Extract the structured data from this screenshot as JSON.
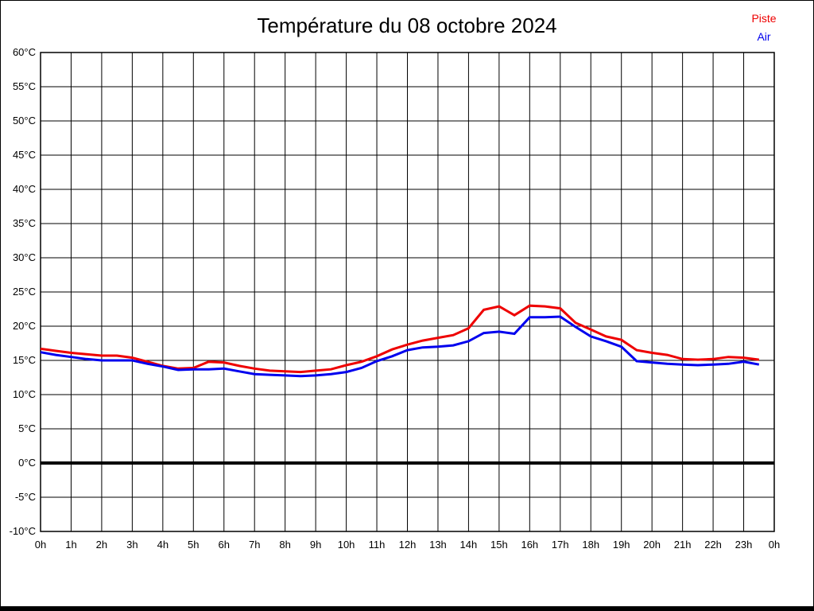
{
  "header": {
    "title": "Température du 08 octobre 2024"
  },
  "legend": {
    "items": [
      {
        "label": "Piste",
        "color": "#ee0000"
      },
      {
        "label": "Air",
        "color": "#0000ee"
      }
    ]
  },
  "colors": {
    "background": "#ffffff",
    "grid": "#000000",
    "zero_line": "#000000",
    "piste_line": "#ee0000",
    "air_line": "#0000ee"
  },
  "chart_data": {
    "type": "line",
    "title": "Température du 08 octobre 2024",
    "xlabel": "",
    "ylabel": "",
    "x_unit": "h",
    "y_unit": "°C",
    "xlim": [
      0,
      24
    ],
    "ylim": [
      -10,
      60
    ],
    "grid": true,
    "zero_line_emphasized": true,
    "legend_position": "top-right",
    "y_tick_step": 5,
    "y_tick_labels": [
      "60°C",
      "55°C",
      "50°C",
      "45°C",
      "40°C",
      "35°C",
      "30°C",
      "25°C",
      "20°C",
      "15°C",
      "10°C",
      "5°C",
      "0°C",
      "-5°C",
      "-10°C"
    ],
    "x_tick_labels": [
      "0h",
      "1h",
      "2h",
      "3h",
      "4h",
      "5h",
      "6h",
      "7h",
      "8h",
      "9h",
      "10h",
      "11h",
      "12h",
      "13h",
      "14h",
      "15h",
      "16h",
      "17h",
      "18h",
      "19h",
      "20h",
      "21h",
      "22h",
      "23h",
      "0h"
    ],
    "x": [
      0,
      0.5,
      1,
      1.5,
      2,
      2.5,
      3,
      3.5,
      4,
      4.5,
      5,
      5.5,
      6,
      6.5,
      7,
      7.5,
      8,
      8.5,
      9,
      9.5,
      10,
      10.5,
      11,
      11.5,
      12,
      12.5,
      13,
      13.5,
      14,
      14.5,
      15,
      15.5,
      16,
      16.5,
      17,
      17.5,
      18,
      18.5,
      19,
      19.5,
      20,
      20.5,
      21,
      21.5,
      22,
      22.5,
      23,
      23.5
    ],
    "series": [
      {
        "name": "Piste",
        "color": "#ee0000",
        "values": [
          16.7,
          16.4,
          16.1,
          15.9,
          15.7,
          15.7,
          15.4,
          14.8,
          14.2,
          13.8,
          13.9,
          14.8,
          14.7,
          14.2,
          13.8,
          13.5,
          13.4,
          13.3,
          13.5,
          13.7,
          14.3,
          14.8,
          15.6,
          16.6,
          17.3,
          17.9,
          18.3,
          18.7,
          19.7,
          22.4,
          22.9,
          21.6,
          23.0,
          22.9,
          22.6,
          20.5,
          19.5,
          18.5,
          18.0,
          16.5,
          16.1,
          15.8,
          15.2,
          15.1,
          15.2,
          15.5,
          15.4,
          15.1
        ]
      },
      {
        "name": "Air",
        "color": "#0000ee",
        "values": [
          16.2,
          15.8,
          15.5,
          15.2,
          15.0,
          15.0,
          15.0,
          14.5,
          14.1,
          13.6,
          13.7,
          13.7,
          13.8,
          13.4,
          13.0,
          12.9,
          12.8,
          12.7,
          12.8,
          13.0,
          13.3,
          13.9,
          14.9,
          15.6,
          16.5,
          16.9,
          17.0,
          17.2,
          17.8,
          19.0,
          19.2,
          18.9,
          21.3,
          21.3,
          21.4,
          19.9,
          18.5,
          17.8,
          17.0,
          14.9,
          14.7,
          14.5,
          14.4,
          14.3,
          14.4,
          14.5,
          14.8,
          14.4
        ]
      }
    ]
  }
}
